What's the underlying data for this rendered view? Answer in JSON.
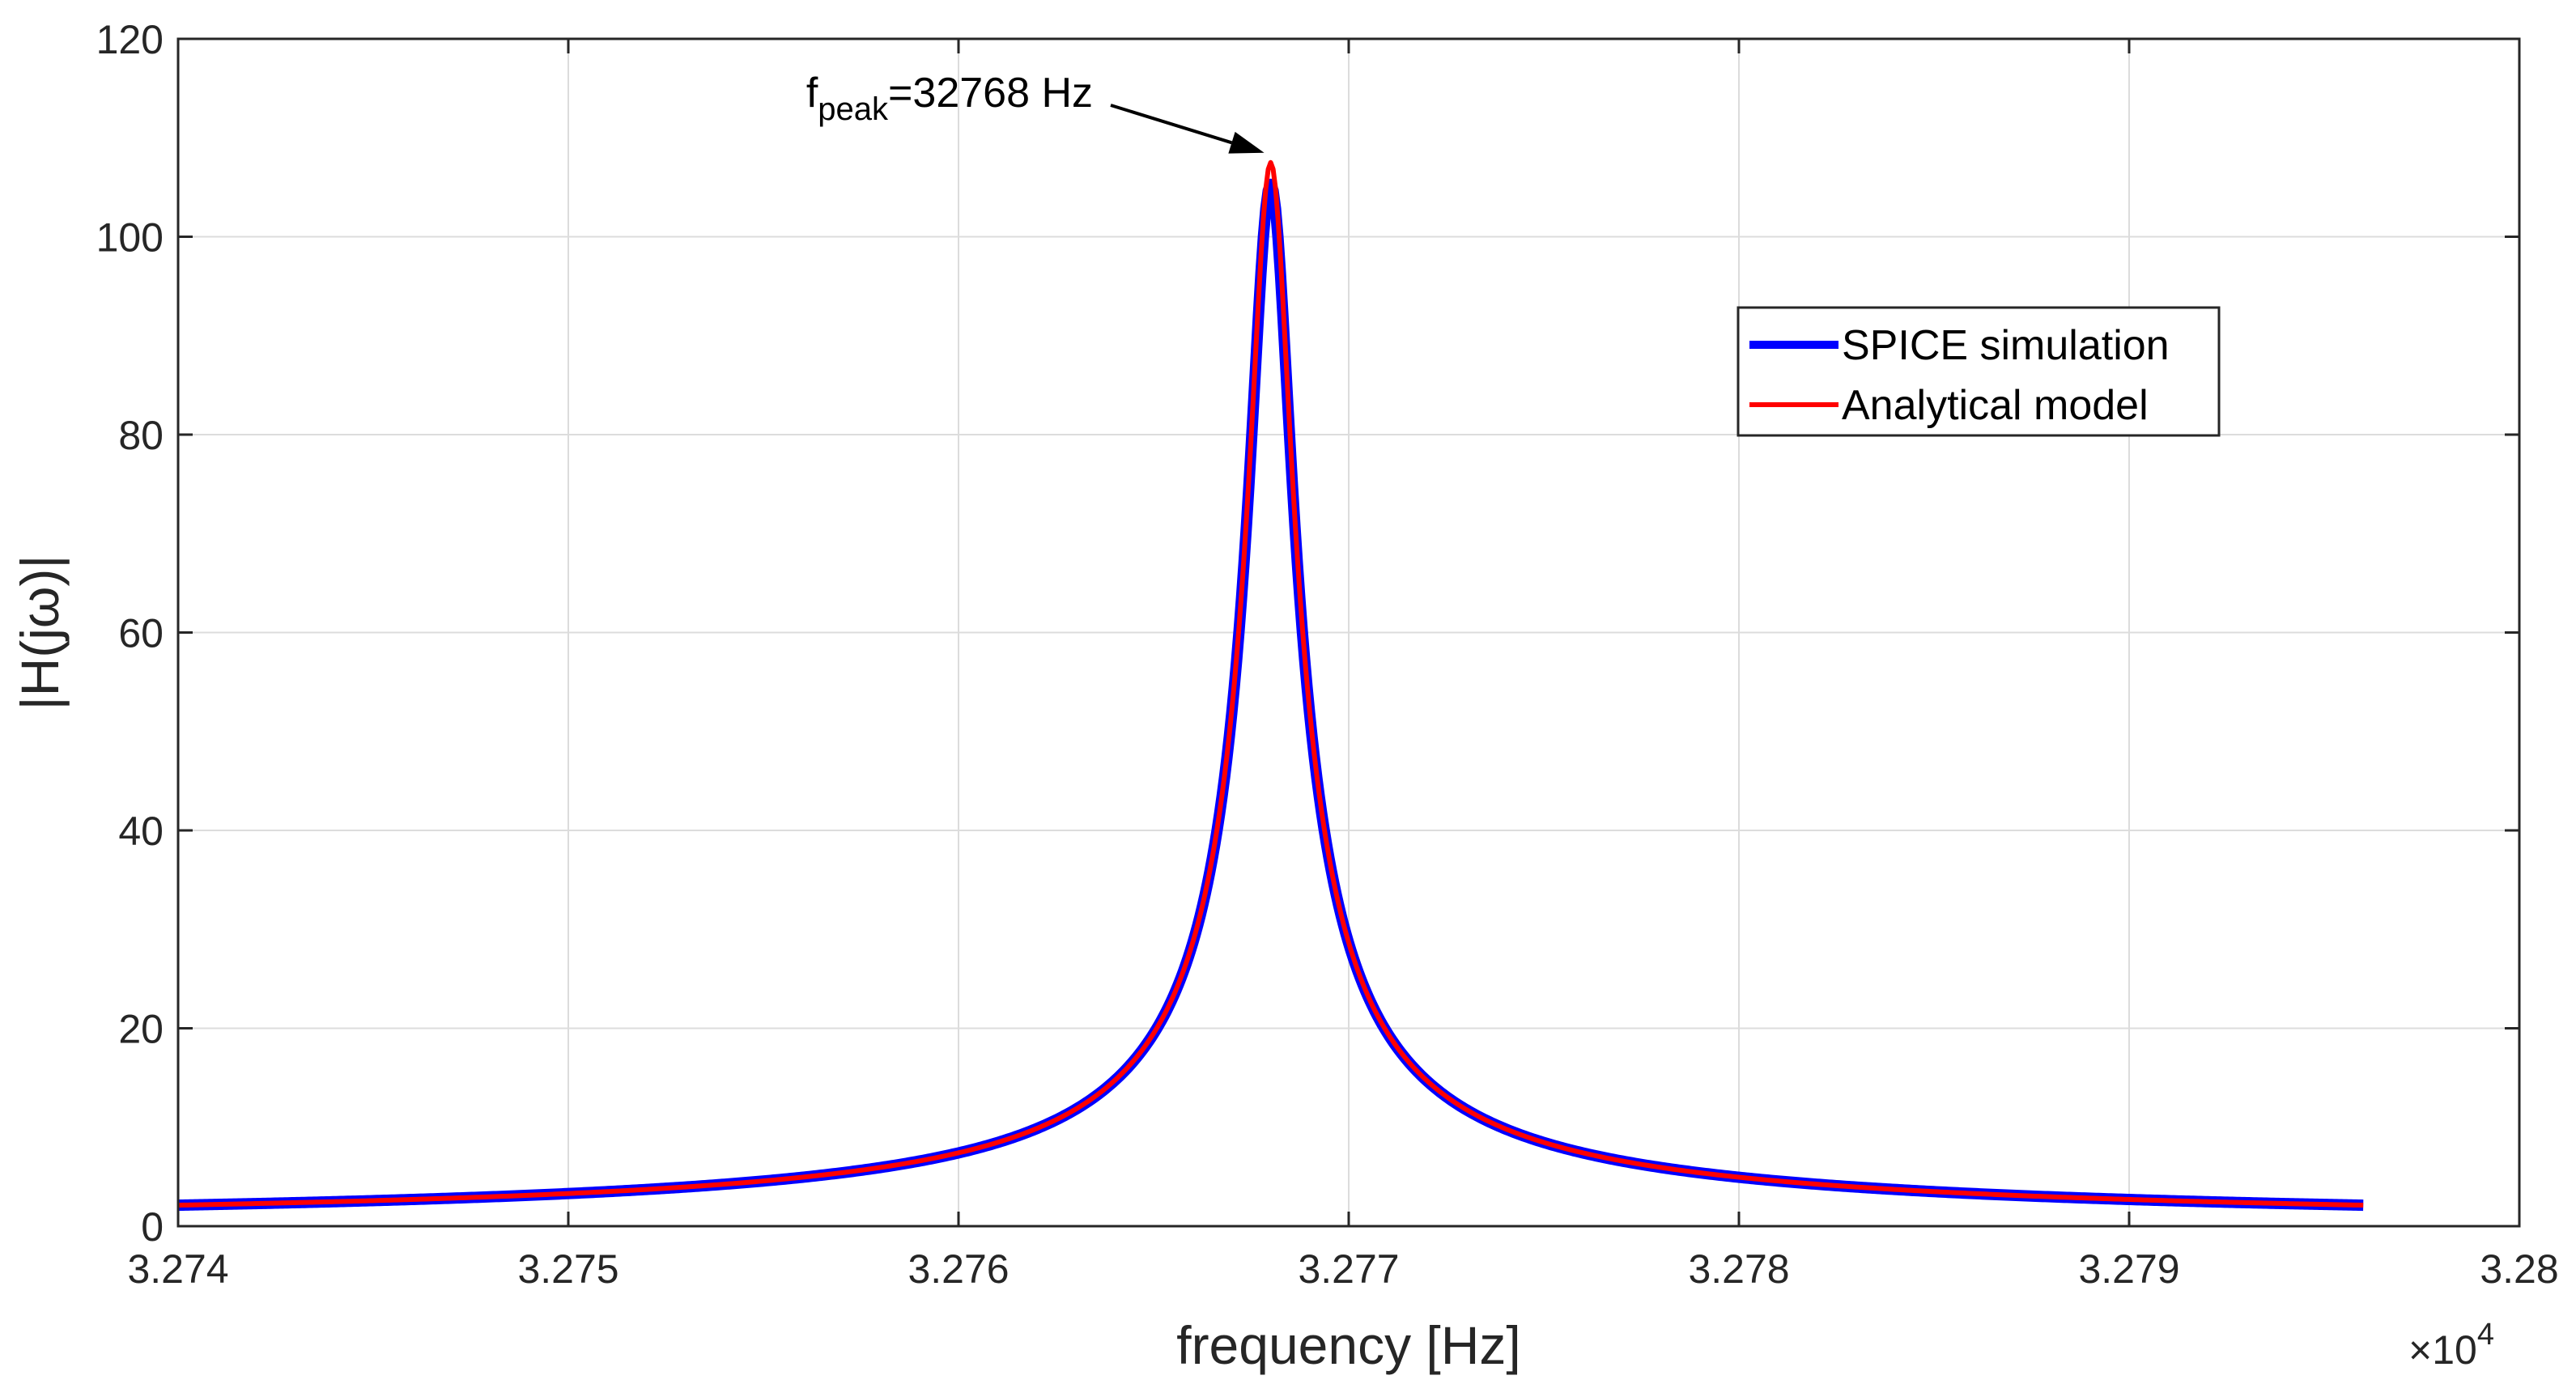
{
  "chart_data": {
    "type": "line",
    "xlabel": "frequency [Hz]",
    "ylabel": "|H(jω)|",
    "x_multiplier_label": "×10",
    "x_multiplier_exponent": "4",
    "xlim": [
      3.274,
      3.28
    ],
    "ylim": [
      0,
      120
    ],
    "x_ticks": [
      "3.274",
      "3.275",
      "3.276",
      "3.277",
      "3.278",
      "3.279",
      "3.28"
    ],
    "x_tick_values": [
      3.274,
      3.275,
      3.276,
      3.277,
      3.278,
      3.279,
      3.28
    ],
    "y_ticks": [
      "0",
      "20",
      "40",
      "60",
      "80",
      "100",
      "120"
    ],
    "y_tick_values": [
      0,
      20,
      40,
      60,
      80,
      100,
      120
    ],
    "grid": true,
    "legend_position": "upper-right",
    "series": [
      {
        "name": "SPICE simulation",
        "color": "#0000ff",
        "model": "resonance",
        "f0": 3.2768,
        "peak": 105.3,
        "gamma": 5.64e-05,
        "x_range": [
          3.274,
          3.2796
        ]
      },
      {
        "name": "Analytical model",
        "color": "#ff0000",
        "model": "resonance",
        "f0": 3.2768,
        "peak": 107.5,
        "gamma": 5.53e-05,
        "x_range": [
          3.274,
          3.2796
        ]
      }
    ],
    "annotation": {
      "text_main": "f",
      "text_sub": "peak",
      "text_rest": "=32768 Hz",
      "target_x": 3.2768,
      "target_y": 108
    }
  }
}
